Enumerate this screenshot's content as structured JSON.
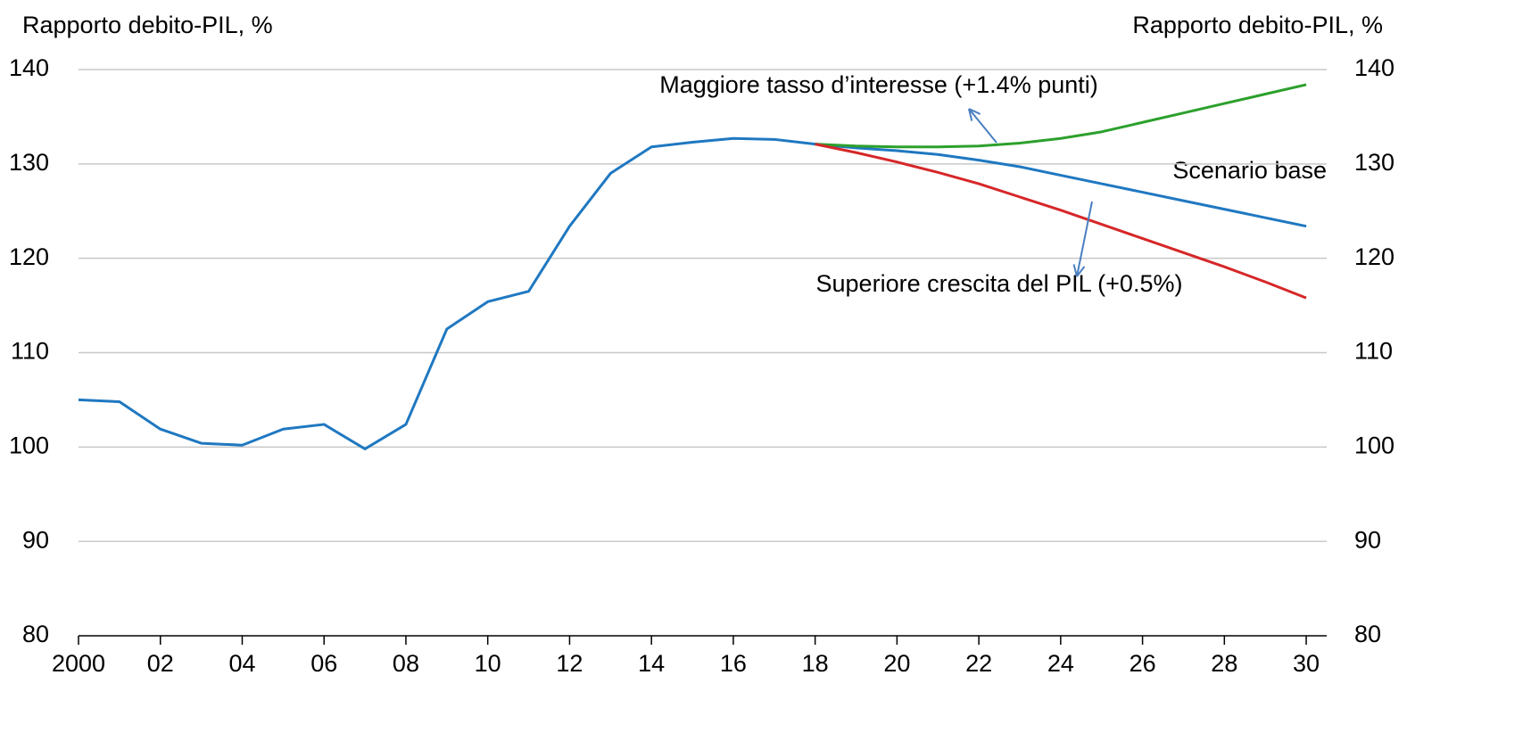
{
  "chart_data": {
    "type": "line",
    "y_label": "Rapporto debito-PIL, %",
    "y2_label": "Rapporto debito-PIL, %",
    "annotations": [
      "Maggiore tasso d’interesse (+1.4% punti)",
      "Scenario base",
      "Superiore crescita del PIL (+0.5%)"
    ],
    "x": [
      2000,
      2001,
      2002,
      2003,
      2004,
      2005,
      2006,
      2007,
      2008,
      2009,
      2010,
      2011,
      2012,
      2013,
      2014,
      2015,
      2016,
      2017,
      2018,
      2019,
      2020,
      2021,
      2022,
      2023,
      2024,
      2025,
      2026,
      2027,
      2028,
      2029,
      2030
    ],
    "series": [
      {
        "name": "Scenario base",
        "color": "#1f78c1",
        "values": [
          105.0,
          104.8,
          101.9,
          100.4,
          100.2,
          101.9,
          102.4,
          99.8,
          102.4,
          112.5,
          115.4,
          116.5,
          123.4,
          129.0,
          131.8,
          132.3,
          132.7,
          132.6,
          132.1,
          131.7,
          131.4,
          131.0,
          130.4,
          129.7,
          128.8,
          127.9,
          127.0,
          126.1,
          125.2,
          124.3,
          123.4
        ]
      },
      {
        "name": "Maggiore tasso d’interesse (+1.4% punti)",
        "color": "#2ca02c",
        "values": [
          null,
          null,
          null,
          null,
          null,
          null,
          null,
          null,
          null,
          null,
          null,
          null,
          null,
          null,
          null,
          null,
          null,
          null,
          132.1,
          131.9,
          131.8,
          131.8,
          131.9,
          132.2,
          132.7,
          133.4,
          134.4,
          135.4,
          136.4,
          137.4,
          138.4
        ]
      },
      {
        "name": "Superiore crescita del PIL (+0.5%)",
        "color": "#d62728",
        "values": [
          null,
          null,
          null,
          null,
          null,
          null,
          null,
          null,
          null,
          null,
          null,
          null,
          null,
          null,
          null,
          null,
          null,
          null,
          132.1,
          131.2,
          130.2,
          129.1,
          127.9,
          126.5,
          125.1,
          123.6,
          122.1,
          120.6,
          119.1,
          117.5,
          115.8
        ]
      }
    ],
    "xlim": [
      2000,
      2030.5
    ],
    "xticks": [
      2000,
      {
        "value": 2002,
        "label": "02"
      },
      {
        "value": 2004,
        "label": "04"
      },
      {
        "value": 2006,
        "label": "06"
      },
      {
        "value": 2008,
        "label": "08"
      },
      {
        "value": 2010,
        "label": "10"
      },
      {
        "value": 2012,
        "label": "12"
      },
      {
        "value": 2014,
        "label": "14"
      },
      {
        "value": 2016,
        "label": "16"
      },
      {
        "value": 2018,
        "label": "18"
      },
      {
        "value": 2020,
        "label": "20"
      },
      {
        "value": 2022,
        "label": "22"
      },
      {
        "value": 2024,
        "label": "24"
      },
      {
        "value": 2026,
        "label": "26"
      },
      {
        "value": 2028,
        "label": "28"
      },
      {
        "value": 2030,
        "label": "30"
      }
    ],
    "ylim": [
      80,
      140
    ],
    "yticks": [
      80,
      90,
      100,
      110,
      120,
      130,
      140
    ],
    "y2lim": [
      80,
      140
    ],
    "y2ticks": [
      80,
      90,
      100,
      110,
      120,
      130,
      140
    ],
    "grid": true
  }
}
